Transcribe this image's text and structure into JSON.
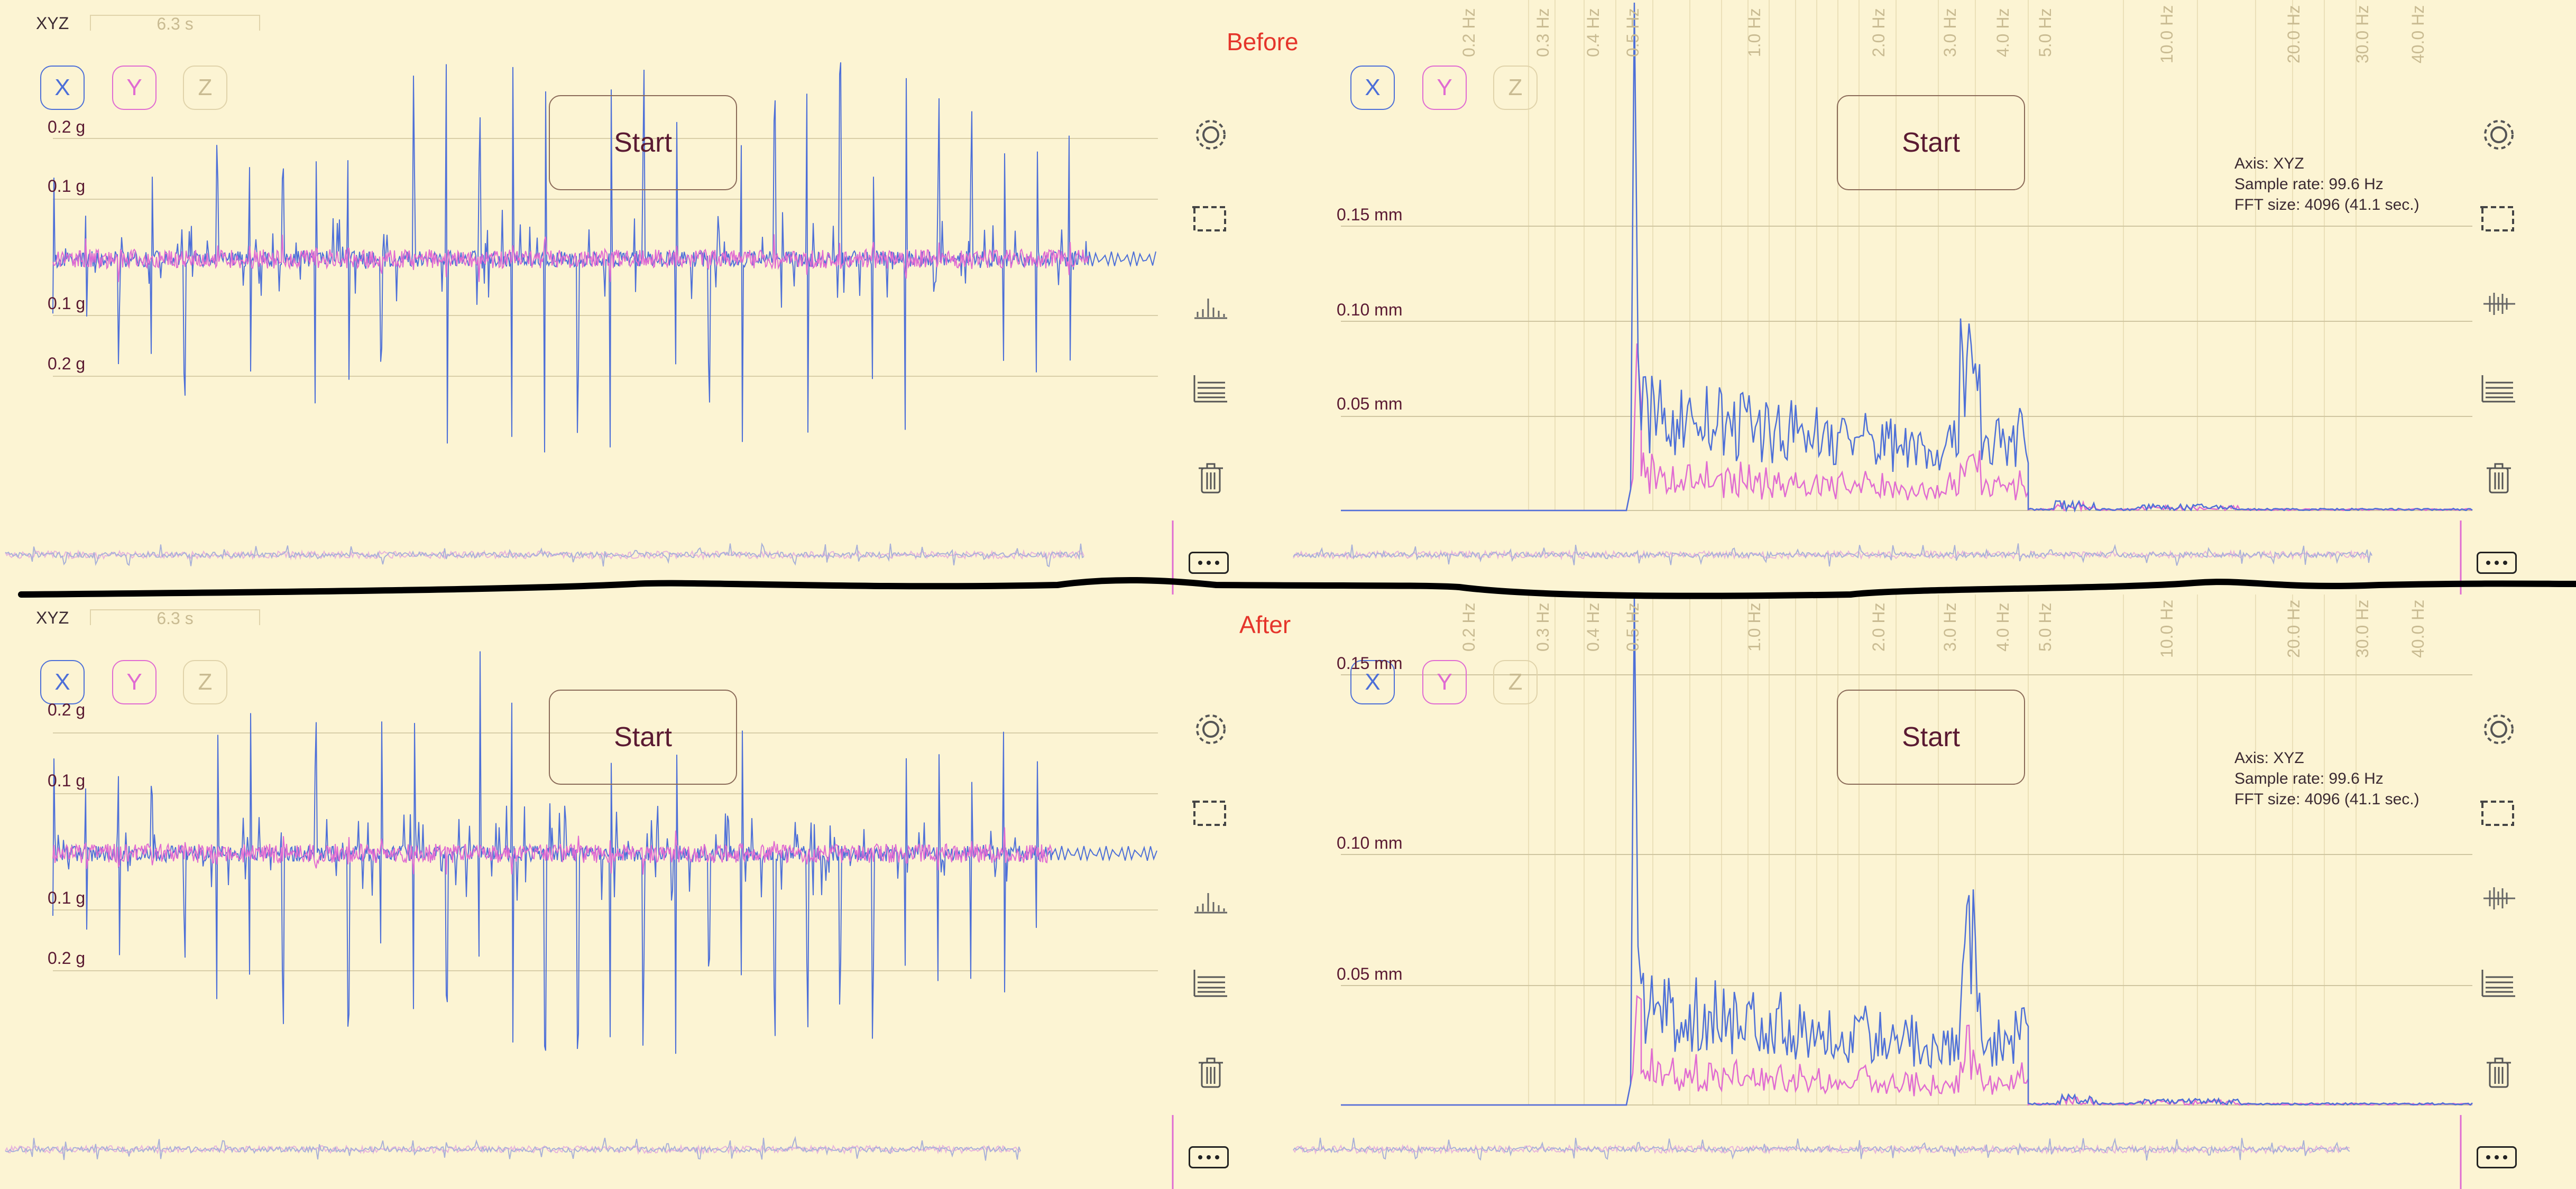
{
  "labels": {
    "before": "Before",
    "after": "After"
  },
  "colors": {
    "background": "#fcf4d3",
    "x_axis": "#4d6fd8",
    "y_axis": "#e06bd2",
    "z_axis": "#c9bb92",
    "start_border": "#8a6a58",
    "label_text": "#5a1a32",
    "header_red": "#e5352b",
    "grid": "#cfc5a0"
  },
  "toggles": {
    "x": "X",
    "y": "Y",
    "z": "Z"
  },
  "start_label": "Start",
  "time_panel": {
    "axis_label": "XYZ",
    "duration": "6.3 s",
    "y_ticks": [
      "0.2 g",
      "0.1 g",
      "0.1 g",
      "0.2 g"
    ]
  },
  "fft_panel": {
    "freq_ticks": [
      "0.2 Hz",
      "0.3 Hz",
      "0.4 Hz",
      "0.5 Hz",
      "1.0 Hz",
      "2.0 Hz",
      "3.0 Hz",
      "4.0 Hz",
      "5.0 Hz",
      "10.0 Hz",
      "20.0 Hz",
      "30.0 Hz",
      "40.0 Hz"
    ],
    "info": [
      "Axis: XYZ",
      "Sample rate: 99.6 Hz",
      "FFT size: 4096 (41.1 sec.)"
    ]
  },
  "before": {
    "fft_y_ticks": [
      "0.15 mm",
      "0.10 mm",
      "0.05 mm"
    ]
  },
  "after": {
    "fft_y_ticks": [
      "0.15 mm",
      "0.10 mm",
      "0.05 mm"
    ]
  },
  "icons": {
    "time": [
      "gear-icon",
      "crop-icon",
      "spectrum-bars-icon",
      "list-lines-icon",
      "trash-icon"
    ],
    "fft": [
      "gear-icon",
      "crop-icon",
      "waveform-icon",
      "list-lines-icon",
      "trash-icon"
    ]
  }
}
